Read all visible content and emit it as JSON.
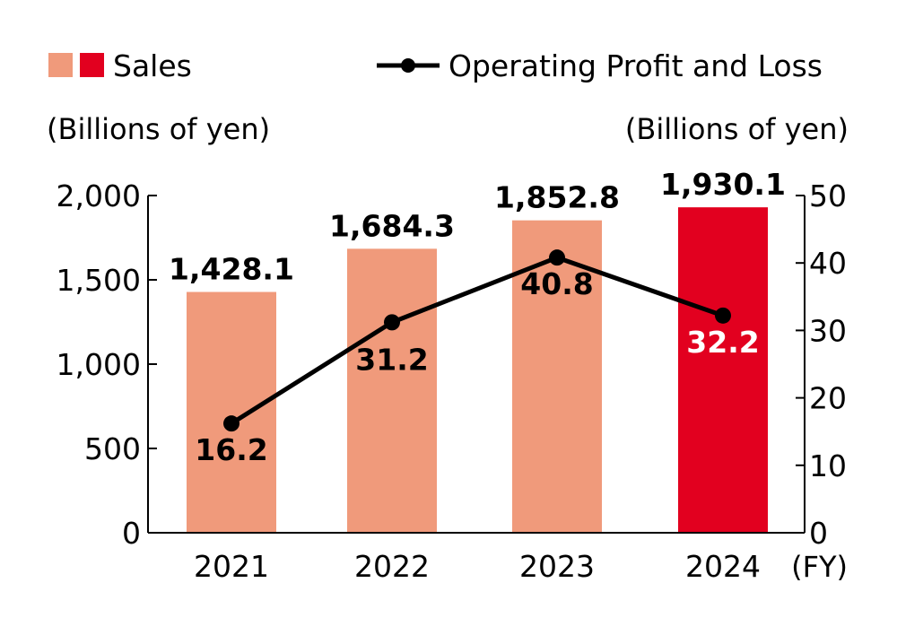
{
  "chart_data": {
    "type": "bar+line",
    "categories": [
      "2021",
      "2022",
      "2023",
      "2024"
    ],
    "x_unit": "(FY)",
    "legend": {
      "sales": "Sales",
      "profit": "Operating Profit and Loss",
      "placement": "top"
    },
    "left_axis": {
      "label": "(Billions of yen)",
      "ylim": [
        0,
        2000
      ],
      "ticks": [
        0,
        500,
        1000,
        1500,
        2000
      ],
      "tick_labels": [
        "0",
        "500",
        "1,000",
        "1,500",
        "2,000"
      ]
    },
    "right_axis": {
      "label": "(Billions of yen)",
      "ylim": [
        0,
        50
      ],
      "ticks": [
        0,
        10,
        20,
        30,
        40,
        50
      ],
      "tick_labels": [
        "0",
        "10",
        "20",
        "30",
        "40",
        "50"
      ]
    },
    "series": [
      {
        "name": "Sales",
        "type": "bar",
        "axis": "left",
        "values": [
          1428.1,
          1684.3,
          1852.8,
          1930.1
        ],
        "labels": [
          "1,428.1",
          "1,684.3",
          "1,852.8",
          "1,930.1"
        ]
      },
      {
        "name": "Operating Profit and Loss",
        "type": "line",
        "axis": "right",
        "values": [
          16.2,
          31.2,
          40.8,
          32.2
        ],
        "labels": [
          "16.2",
          "31.2",
          "40.8",
          "32.2"
        ]
      }
    ],
    "colors": {
      "bar": "#F09A7B",
      "bar_highlight": "#E2001F",
      "line": "#000000"
    },
    "grid": false
  }
}
